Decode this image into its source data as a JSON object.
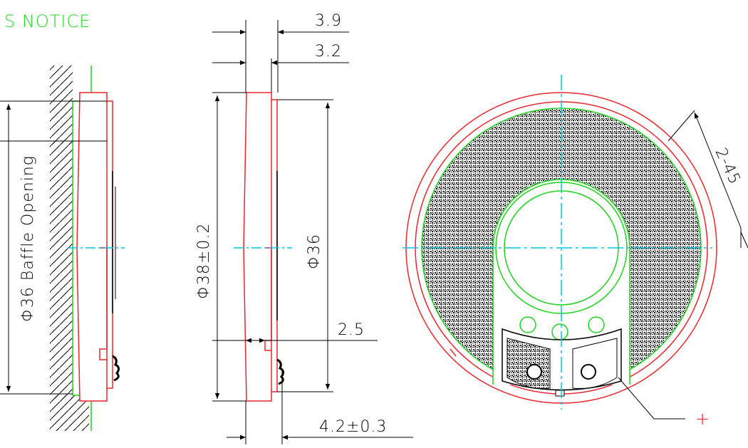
{
  "notice": "S NOTICE",
  "dimensions": {
    "width_total": "3.9",
    "width_body": "3.2",
    "outer_diameter": "Φ38±0.2",
    "inner_diameter": "Φ36",
    "rim_offset": "2.5",
    "overall_thickness": "4.2±0.3",
    "baffle_opening": "Φ36 Baffle Opening",
    "holes": "2-45"
  },
  "polarity_mark": "+",
  "colors": {
    "outline": "#e8262e",
    "inner": "#1fd21f",
    "centerline": "#00c8e0",
    "dimension": "#000000"
  }
}
